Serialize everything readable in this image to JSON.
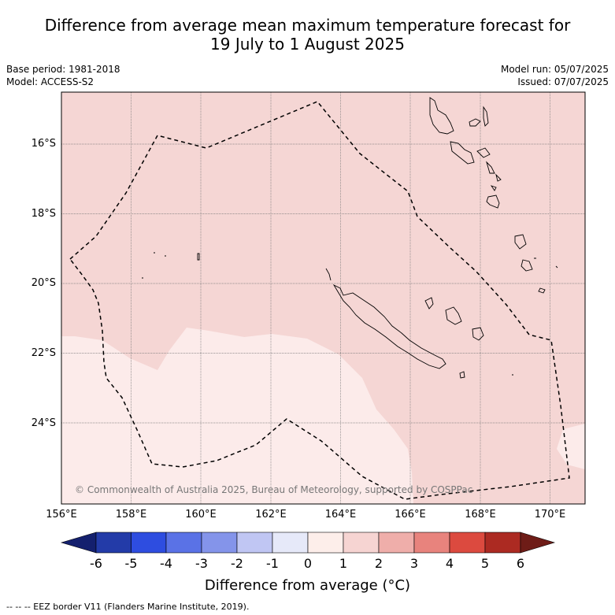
{
  "title_line1": "Difference from average mean maximum temperature forecast for",
  "title_line2": "19 July to 1 August 2025",
  "base_period": "Base period: 1981-2018",
  "model": "Model: ACCESS-S2",
  "model_run": "Model run: 05/07/2025",
  "issued": "Issued: 07/07/2025",
  "copyright": "© Commonwealth of Australia 2025, Bureau of Meteorology, supported by COSPPac",
  "lat_ticks": [
    "16°S",
    "18°S",
    "20°S",
    "22°S",
    "24°S"
  ],
  "lon_ticks": [
    "156°E",
    "158°E",
    "160°E",
    "162°E",
    "164°E",
    "166°E",
    "168°E",
    "170°E"
  ],
  "colorbar": {
    "title": "Difference from average (°C)",
    "labels": [
      "-6",
      "-5",
      "-4",
      "-3",
      "-2",
      "-1",
      "0",
      "1",
      "2",
      "3",
      "4",
      "5",
      "6"
    ],
    "colors": [
      "#14206e",
      "#233ba8",
      "#2e4de0",
      "#5a72e6",
      "#8494ea",
      "#c0c6f3",
      "#e6e9f9",
      "#fdeeea",
      "#f6d4d2",
      "#efaeaa",
      "#e8837d",
      "#dc4a3f",
      "#ac2a22",
      "#6e1c17"
    ]
  },
  "map_fills": {
    "background": "#f5d6d4",
    "low_anomaly": "#fcebea"
  },
  "footer": "-- -- -- EEZ border V11 (Flanders Marine Institute, 2019)."
}
